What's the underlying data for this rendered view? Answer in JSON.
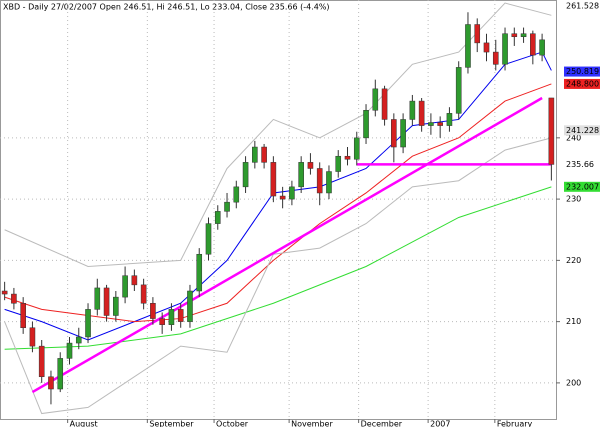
{
  "chart_data": {
    "type": "candlestick",
    "title": "XBD - Daily 27/02/2007 Open 246.51, Hi 246.51, Lo 233.04, Close 235.66 (-4.4%)",
    "x": [
      1,
      2,
      3,
      4,
      5,
      6,
      7,
      8,
      9,
      10,
      11,
      12,
      13,
      14,
      15,
      16,
      17,
      18,
      19,
      20,
      21,
      22,
      23,
      24,
      25,
      26,
      27,
      28,
      29,
      30,
      31,
      32,
      33,
      34,
      35,
      36,
      37,
      38,
      39,
      40,
      41,
      42,
      43,
      44,
      45,
      46,
      47,
      48,
      49,
      50,
      51,
      52,
      53,
      54,
      55,
      56,
      57,
      58,
      59,
      60
    ],
    "open": [
      215,
      214.5,
      213,
      209,
      206,
      201,
      199,
      204,
      206.5,
      207.5,
      212,
      215.5,
      211,
      214,
      217.5,
      216,
      213,
      210.5,
      209.5,
      212,
      210,
      215,
      221,
      226,
      228,
      229.5,
      232,
      236,
      238.5,
      236,
      230.5,
      230,
      232,
      236,
      235,
      231,
      234.5,
      237,
      236.5,
      240,
      244.5,
      248,
      243,
      238.5,
      243,
      246,
      242,
      242.5,
      242,
      244,
      251.5,
      258.5,
      255.5,
      254,
      252,
      257,
      256.5,
      257,
      253.5,
      246.51
    ],
    "high": [
      216.5,
      215.5,
      214,
      210,
      207,
      202,
      205,
      207.5,
      209,
      213,
      217,
      216,
      215,
      219,
      218.5,
      217,
      214,
      211.5,
      213,
      213,
      216,
      222,
      227,
      229,
      231,
      233,
      237,
      239.5,
      239,
      237,
      232,
      233,
      237,
      237.5,
      236,
      235.5,
      238,
      238.5,
      241,
      245.5,
      249.5,
      248.5,
      244,
      244,
      247,
      246.5,
      244,
      243.5,
      245,
      252.5,
      260.5,
      259.5,
      257,
      256,
      258,
      258,
      258,
      257.5,
      257,
      246.51
    ],
    "low": [
      213.5,
      212,
      208,
      205,
      200,
      196.5,
      198.5,
      203,
      205.5,
      206.5,
      211,
      210,
      210,
      213,
      215,
      212,
      209.5,
      208,
      208.5,
      209,
      209,
      214,
      220,
      225,
      227,
      228.5,
      231,
      235,
      235,
      229.5,
      228.5,
      229,
      231,
      234,
      229,
      230,
      233.5,
      235.5,
      235.5,
      239,
      243.5,
      242,
      236,
      237.5,
      242,
      241,
      240.5,
      240,
      241,
      243,
      250.5,
      254,
      252.5,
      251,
      251,
      255,
      255.5,
      252,
      252.5,
      233.04
    ],
    "close": [
      214.5,
      213,
      209,
      206,
      201,
      199,
      204,
      206.5,
      207.5,
      212,
      215.5,
      211,
      214,
      217.5,
      216,
      213,
      210.5,
      209.5,
      212,
      210,
      215,
      221,
      226,
      228,
      229.5,
      232,
      236,
      238.5,
      236,
      230.5,
      230,
      232,
      236,
      235,
      231,
      234.5,
      237,
      236.5,
      240,
      244.5,
      248,
      243,
      238.5,
      243,
      246,
      242,
      242.5,
      242,
      244,
      251.5,
      258.5,
      255.5,
      254,
      252,
      257,
      256.5,
      257,
      253.5,
      256,
      235.66
    ],
    "up_color": "#2e9a2e",
    "down_color": "#d42020",
    "overlays": [
      {
        "color": "#0000ee",
        "x": [
          1,
          5,
          10,
          15,
          20,
          25,
          30,
          35,
          40,
          45,
          50,
          55,
          59,
          60
        ],
        "values": [
          212,
          210,
          207,
          210,
          213,
          220,
          231,
          232,
          235,
          242,
          243,
          252,
          254,
          251
        ]
      },
      {
        "color": "#ee2222",
        "x": [
          1,
          5,
          10,
          15,
          20,
          25,
          30,
          35,
          40,
          45,
          50,
          55,
          60
        ],
        "values": [
          214,
          212,
          211,
          210,
          210.5,
          213,
          220,
          226,
          231,
          237,
          240,
          246,
          248.8
        ]
      },
      {
        "color": "#33dd33",
        "x": [
          1,
          10,
          20,
          30,
          40,
          50,
          60
        ],
        "values": [
          205.5,
          206,
          208,
          213,
          219,
          227,
          232
        ]
      },
      {
        "color": "#bbbbbb",
        "x": [
          1,
          10,
          20,
          25,
          30,
          35,
          40,
          45,
          50,
          55,
          60
        ],
        "values": [
          225,
          219,
          220,
          235,
          243,
          240,
          244,
          252,
          254,
          262,
          260
        ]
      },
      {
        "color": "#bbbbbb",
        "x": [
          1,
          5,
          10,
          20,
          25,
          30,
          35,
          40,
          45,
          50,
          55,
          60
        ],
        "values": [
          210,
          195,
          196,
          206,
          205,
          221,
          222,
          226,
          232,
          233,
          238,
          240
        ]
      },
      {
        "color": "#ff00ff",
        "x": [
          4,
          59
        ],
        "values": [
          198.5,
          246.5
        ]
      },
      {
        "color": "#ff00ff",
        "x": [
          39,
          60
        ],
        "values": [
          235.66,
          235.66
        ]
      }
    ],
    "xlim": [
      0.5,
      60.5
    ],
    "xticks": [
      {
        "value": 7.8,
        "label": "August"
      },
      {
        "value": 16.4,
        "label": "September"
      },
      {
        "value": 23.6,
        "label": "October"
      },
      {
        "value": 31.7,
        "label": "November"
      },
      {
        "value": 39.2,
        "label": "December"
      },
      {
        "value": 46.7,
        "label": "2007"
      },
      {
        "value": 53.9,
        "label": "February"
      }
    ],
    "ylim": [
      192.8,
      262.5
    ],
    "yticks": [
      200,
      210,
      220,
      230,
      240
    ],
    "price_labels": [
      {
        "value": 261.528,
        "label": "261.528",
        "color": "#ffffff"
      },
      {
        "value": 250.819,
        "label": "250.819",
        "color": "#3030ff"
      },
      {
        "value": 248.8,
        "label": "248.800",
        "color": "#ee2222"
      },
      {
        "value": 241.228,
        "label": "241.228",
        "color": "#e0e0e0"
      },
      {
        "value": 235.66,
        "label": "235.66",
        "color": "#ffffff"
      },
      {
        "value": 232.007,
        "label": "232.007",
        "color": "#33dd33"
      }
    ],
    "grid": true
  }
}
